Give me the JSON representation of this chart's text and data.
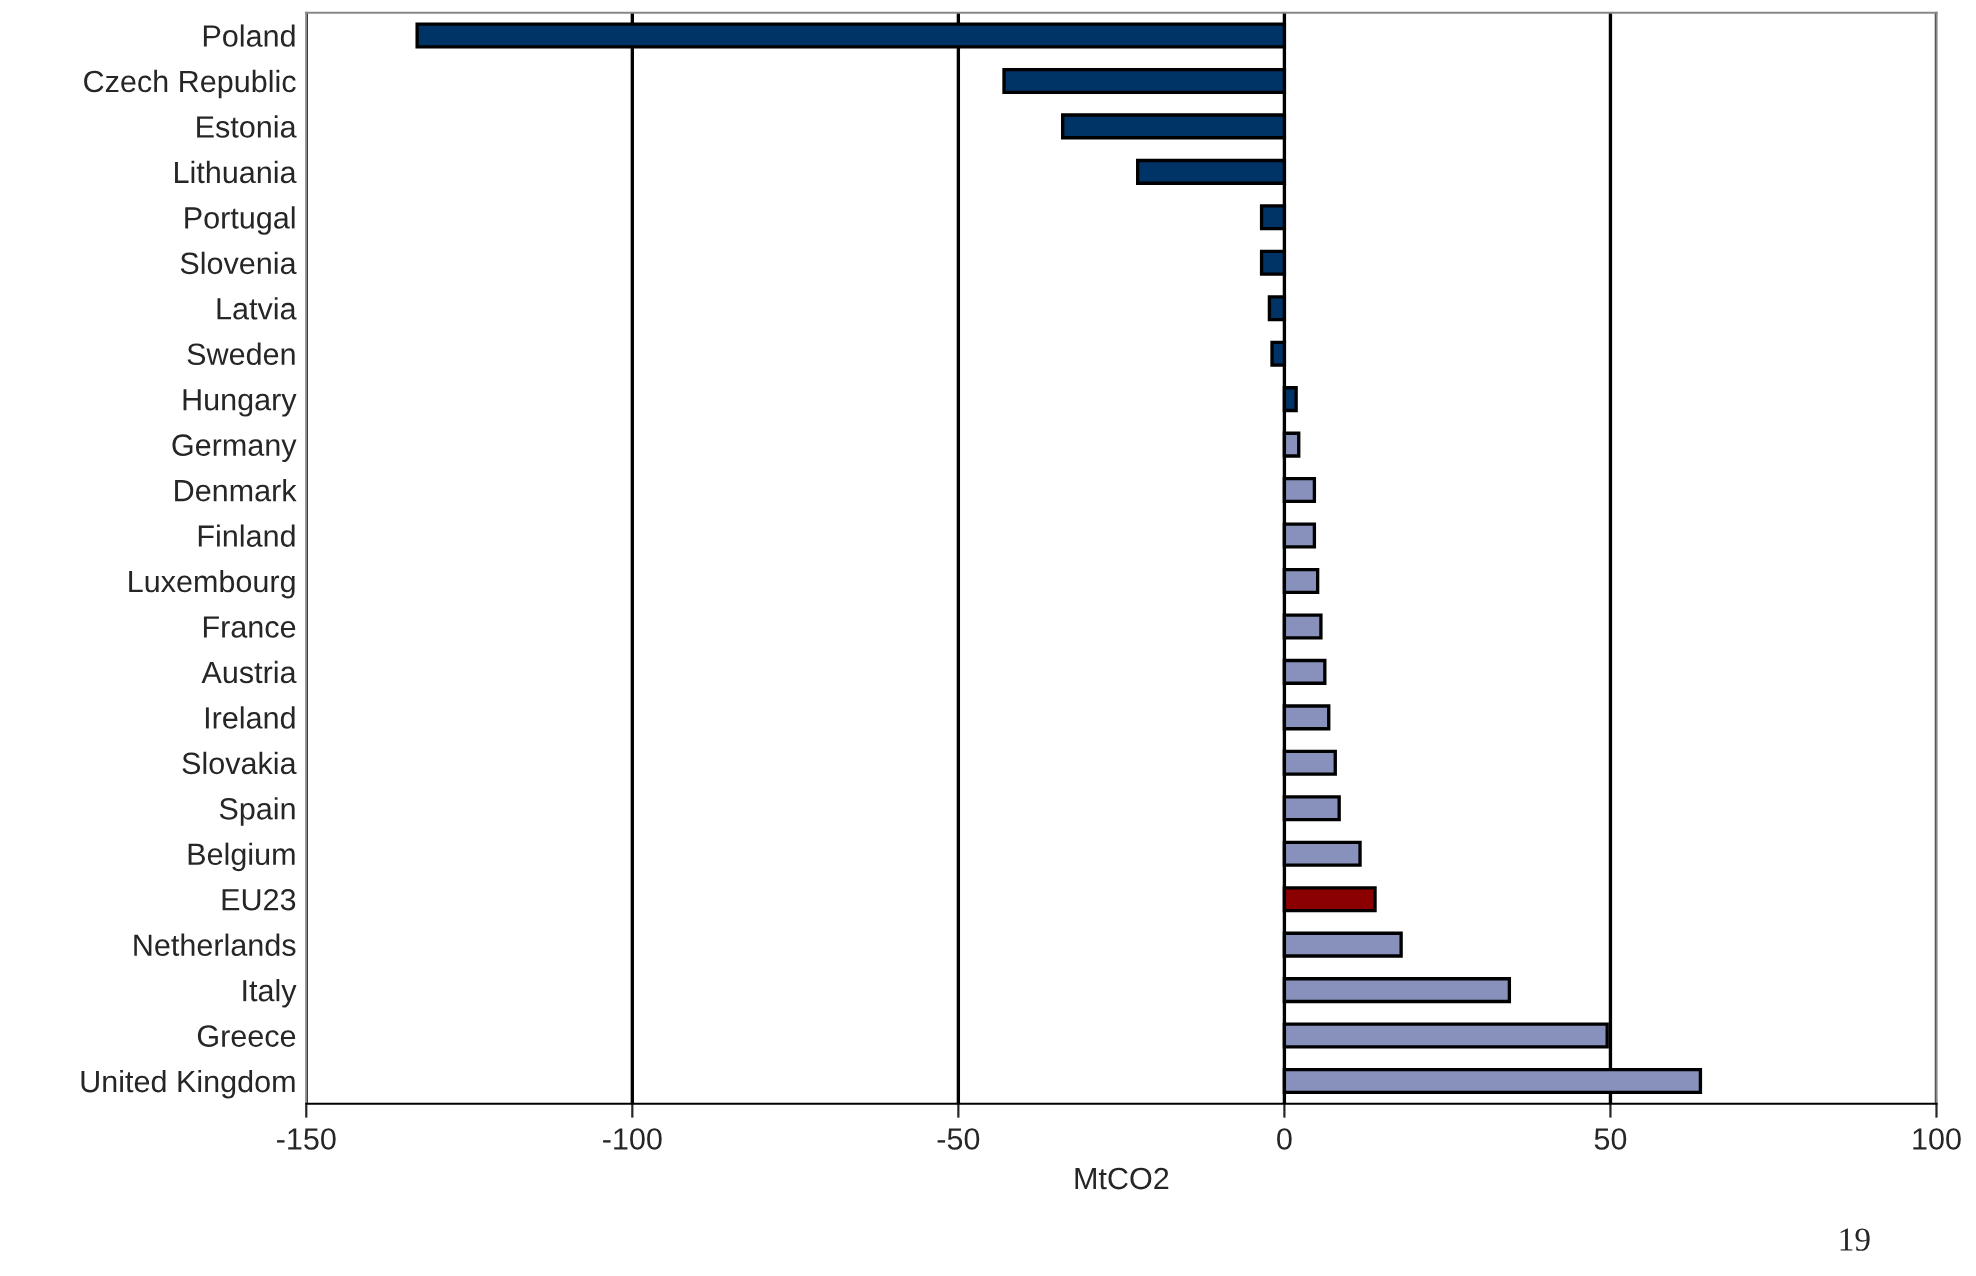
{
  "chart_data": {
    "type": "bar",
    "orientation": "horizontal",
    "xlabel": "MtCO2",
    "categories": [
      "Poland",
      "Czech Republic",
      "Estonia",
      "Lithuania",
      "Portugal",
      "Slovenia",
      "Latvia",
      "Sweden",
      "Hungary",
      "Germany",
      "Denmark",
      "Finland",
      "Luxembourg",
      "France",
      "Austria",
      "Ireland",
      "Slovakia",
      "Spain",
      "Belgium",
      "EU23",
      "Netherlands",
      "Italy",
      "Greece",
      "United Kingdom"
    ],
    "values": [
      -133,
      -43,
      -34,
      -22.5,
      -3.5,
      -3.5,
      -2.3,
      -1.9,
      1.8,
      2.2,
      4.6,
      4.6,
      5.1,
      5.6,
      6.2,
      6.8,
      7.8,
      8.4,
      11.6,
      13.9,
      17.9,
      34.5,
      49.5,
      63.8
    ],
    "colors": [
      "#003366",
      "#003366",
      "#003366",
      "#003366",
      "#003366",
      "#003366",
      "#003366",
      "#003366",
      "#003366",
      "#8891bb",
      "#8891bb",
      "#8891bb",
      "#8891bb",
      "#8891bb",
      "#8891bb",
      "#8891bb",
      "#8891bb",
      "#8891bb",
      "#8891bb",
      "#8b0000",
      "#8891bb",
      "#8891bb",
      "#8891bb",
      "#8891bb"
    ],
    "xlim": [
      -150,
      100
    ],
    "xticks": [
      -150,
      -100,
      -50,
      0,
      50,
      100
    ],
    "grid": "x",
    "annotations": [
      "19"
    ]
  }
}
